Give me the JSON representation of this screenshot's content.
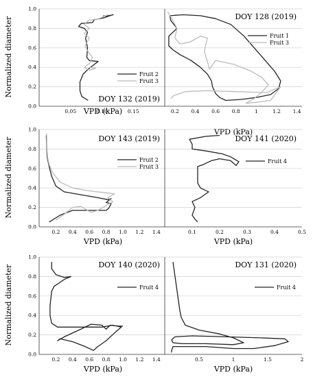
{
  "figure": {
    "ylabel": "Normalized diameter",
    "xlabel": "VPD (kPa)"
  },
  "chart_data": [
    {
      "type": "line",
      "title": "DOY 132 (2019)",
      "xlim": [
        0,
        0.2
      ],
      "ylim": [
        0,
        1
      ],
      "xticks": [
        0.05,
        0.1,
        0.15
      ],
      "xtick_labels": [
        "0.05",
        "0.10",
        "0.15"
      ],
      "yticks": [
        0,
        0.2,
        0.4,
        0.6,
        0.8,
        1.0
      ],
      "ytick_labels": [
        "0.0",
        "0.2",
        "0.4",
        "0.6",
        "0.8",
        "1.0"
      ],
      "legend": "bottom-right",
      "series": [
        {
          "name": "Fruit 2",
          "color": "#222222",
          "points": [
            [
              0.078,
              0.06
            ],
            [
              0.068,
              0.1
            ],
            [
              0.065,
              0.16
            ],
            [
              0.065,
              0.25
            ],
            [
              0.07,
              0.33
            ],
            [
              0.078,
              0.38
            ],
            [
              0.088,
              0.43
            ],
            [
              0.094,
              0.46
            ],
            [
              0.08,
              0.47
            ],
            [
              0.076,
              0.5
            ],
            [
              0.077,
              0.6
            ],
            [
              0.074,
              0.7
            ],
            [
              0.077,
              0.76
            ],
            [
              0.072,
              0.8
            ],
            [
              0.063,
              0.82
            ],
            [
              0.067,
              0.85
            ],
            [
              0.085,
              0.86
            ],
            [
              0.088,
              0.89
            ],
            [
              0.104,
              0.91
            ],
            [
              0.115,
              0.935
            ],
            [
              0.118,
              0.94
            ],
            [
              0.106,
              0.925
            ],
            [
              0.102,
              0.93
            ]
          ]
        },
        {
          "name": "Fruit 3",
          "color": "#bbbbbb",
          "points": [
            [
              0.11,
              0.94
            ],
            [
              0.095,
              0.9
            ],
            [
              0.078,
              0.88
            ],
            [
              0.072,
              0.84
            ],
            [
              0.08,
              0.8
            ],
            [
              0.072,
              0.75
            ],
            [
              0.08,
              0.7
            ],
            [
              0.073,
              0.62
            ],
            [
              0.078,
              0.56
            ],
            [
              0.085,
              0.5
            ],
            [
              0.08,
              0.44
            ],
            [
              0.072,
              0.4
            ],
            [
              0.08,
              0.37
            ],
            [
              0.09,
              0.39
            ],
            [
              0.08,
              0.4
            ]
          ]
        }
      ]
    },
    {
      "type": "line",
      "title": "DOY 128 (2019)",
      "xlim": [
        0.1,
        1.45
      ],
      "ylim": [
        0,
        1
      ],
      "xticks": [
        0.2,
        0.4,
        0.6,
        0.8,
        1.0,
        1.2,
        1.4
      ],
      "xtick_labels": [
        "0.2",
        "0.4",
        "0.6",
        "0.8",
        "1",
        "1.2",
        "1.4"
      ],
      "yticks": [
        0,
        0.2,
        0.4,
        0.6,
        0.8,
        1.0
      ],
      "legend": "top-right",
      "series": [
        {
          "name": "Fruit 1",
          "color": "#222222",
          "points": [
            [
              0.15,
              0.93
            ],
            [
              0.28,
              0.94
            ],
            [
              0.45,
              0.93
            ],
            [
              0.6,
              0.9
            ],
            [
              0.75,
              0.84
            ],
            [
              0.88,
              0.72
            ],
            [
              0.98,
              0.6
            ],
            [
              1.08,
              0.48
            ],
            [
              1.18,
              0.36
            ],
            [
              1.24,
              0.26
            ],
            [
              1.22,
              0.18
            ],
            [
              1.14,
              0.12
            ],
            [
              1.0,
              0.09
            ],
            [
              0.85,
              0.07
            ],
            [
              0.7,
              0.06
            ],
            [
              0.64,
              0.09
            ],
            [
              0.6,
              0.13
            ],
            [
              0.57,
              0.2
            ],
            [
              0.56,
              0.26
            ],
            [
              0.52,
              0.33
            ],
            [
              0.45,
              0.4
            ],
            [
              0.36,
              0.47
            ],
            [
              0.25,
              0.53
            ],
            [
              0.18,
              0.58
            ],
            [
              0.14,
              0.62
            ],
            [
              0.14,
              0.72
            ],
            [
              0.22,
              0.8
            ],
            [
              0.16,
              0.88
            ],
            [
              0.15,
              0.93
            ]
          ]
        },
        {
          "name": "Fruit 3",
          "color": "#bbbbbb",
          "points": [
            [
              0.13,
              0.97
            ],
            [
              0.18,
              0.88
            ],
            [
              0.22,
              0.8
            ],
            [
              0.2,
              0.7
            ],
            [
              0.25,
              0.64
            ],
            [
              0.35,
              0.66
            ],
            [
              0.45,
              0.72
            ],
            [
              0.52,
              0.7
            ],
            [
              0.5,
              0.62
            ],
            [
              0.49,
              0.56
            ],
            [
              0.52,
              0.46
            ],
            [
              0.54,
              0.38
            ],
            [
              0.6,
              0.47
            ],
            [
              0.78,
              0.43
            ],
            [
              0.95,
              0.36
            ],
            [
              1.05,
              0.3
            ],
            [
              1.12,
              0.22
            ],
            [
              1.05,
              0.14
            ],
            [
              0.98,
              0.08
            ],
            [
              0.9,
              0.03
            ],
            [
              1.0,
              0.04
            ],
            [
              1.14,
              0.06
            ],
            [
              1.24,
              0.2
            ],
            [
              1.1,
              0.14
            ],
            [
              0.8,
              0.15
            ],
            [
              0.52,
              0.16
            ],
            [
              0.3,
              0.15
            ],
            [
              0.19,
              0.11
            ],
            [
              0.16,
              0.08
            ]
          ]
        }
      ]
    },
    {
      "type": "line",
      "title": "DOY 143 (2019)",
      "xlim": [
        0,
        1.5
      ],
      "ylim": [
        0,
        1
      ],
      "xticks": [
        0.2,
        0.4,
        0.6,
        0.8,
        1.0,
        1.2,
        1.4
      ],
      "xtick_labels": [
        "0.2",
        "0.4",
        "0.6",
        "0.8",
        "1.0",
        "1.2",
        "1.4"
      ],
      "yticks": [
        0,
        0.2,
        0.4,
        0.6,
        0.8,
        1.0
      ],
      "ytick_labels": [
        "0.0",
        "0.2",
        "0.4",
        "0.6",
        "0.8",
        "1.0"
      ],
      "legend": "top-right",
      "series": [
        {
          "name": "Fruit 2",
          "color": "#222222",
          "points": [
            [
              0.085,
              0.94
            ],
            [
              0.09,
              0.84
            ],
            [
              0.095,
              0.72
            ],
            [
              0.12,
              0.62
            ],
            [
              0.15,
              0.52
            ],
            [
              0.2,
              0.42
            ],
            [
              0.3,
              0.36
            ],
            [
              0.5,
              0.33
            ],
            [
              0.7,
              0.3
            ],
            [
              0.82,
              0.28
            ],
            [
              0.86,
              0.29
            ],
            [
              0.8,
              0.25
            ],
            [
              0.86,
              0.24
            ],
            [
              0.83,
              0.19
            ],
            [
              0.8,
              0.17
            ],
            [
              0.6,
              0.17
            ],
            [
              0.4,
              0.17
            ],
            [
              0.25,
              0.12
            ],
            [
              0.12,
              0.05
            ]
          ]
        },
        {
          "name": "Fruit 3",
          "color": "#bbbbbb",
          "points": [
            [
              0.09,
              0.96
            ],
            [
              0.092,
              0.85
            ],
            [
              0.1,
              0.72
            ],
            [
              0.12,
              0.64
            ],
            [
              0.16,
              0.56
            ],
            [
              0.25,
              0.46
            ],
            [
              0.4,
              0.4
            ],
            [
              0.6,
              0.37
            ],
            [
              0.8,
              0.35
            ],
            [
              0.9,
              0.34
            ],
            [
              0.82,
              0.3
            ],
            [
              0.88,
              0.26
            ],
            [
              0.8,
              0.22
            ],
            [
              0.7,
              0.17
            ],
            [
              0.62,
              0.15
            ],
            [
              0.5,
              0.21
            ],
            [
              0.4,
              0.2
            ],
            [
              0.3,
              0.13
            ],
            [
              0.2,
              0.07
            ]
          ]
        }
      ]
    },
    {
      "type": "line",
      "title": "DOY 141 (2020)",
      "xlim": [
        0,
        0.5
      ],
      "ylim": [
        0,
        1
      ],
      "xticks": [
        0.1,
        0.2,
        0.3,
        0.4,
        0.5
      ],
      "xtick_labels": [
        "0.1",
        "0.2",
        "0.3",
        "0.4",
        "0.5"
      ],
      "yticks": [
        0,
        0.2,
        0.4,
        0.6,
        0.8,
        1.0
      ],
      "legend": "top-right",
      "series": [
        {
          "name": "Fruit 4",
          "color": "#222222",
          "points": [
            [
              0.2,
              0.94
            ],
            [
              0.15,
              0.93
            ],
            [
              0.09,
              0.9
            ],
            [
              0.1,
              0.85
            ],
            [
              0.1,
              0.8
            ],
            [
              0.15,
              0.78
            ],
            [
              0.21,
              0.75
            ],
            [
              0.24,
              0.72
            ],
            [
              0.27,
              0.67
            ],
            [
              0.26,
              0.63
            ],
            [
              0.24,
              0.68
            ],
            [
              0.2,
              0.7
            ],
            [
              0.17,
              0.68
            ],
            [
              0.14,
              0.64
            ],
            [
              0.12,
              0.62
            ],
            [
              0.12,
              0.55
            ],
            [
              0.12,
              0.45
            ],
            [
              0.13,
              0.4
            ],
            [
              0.16,
              0.36
            ],
            [
              0.13,
              0.3
            ],
            [
              0.1,
              0.26
            ],
            [
              0.11,
              0.2
            ],
            [
              0.1,
              0.12
            ],
            [
              0.11,
              0.08
            ],
            [
              0.12,
              0.05
            ]
          ]
        }
      ]
    },
    {
      "type": "line",
      "title": "DOY 140 (2020)",
      "xlim": [
        0,
        1.5
      ],
      "ylim": [
        0,
        1
      ],
      "xticks": [
        0.2,
        0.4,
        0.6,
        0.8,
        1.0,
        1.2,
        1.4
      ],
      "xtick_labels": [
        "0.2",
        "0.4",
        "0.6",
        "0.8",
        "1.0",
        "1.2",
        "1.4"
      ],
      "yticks": [
        0,
        0.2,
        0.4,
        0.6,
        0.8,
        1.0
      ],
      "ytick_labels": [
        "0.0",
        "0.2",
        "0.4",
        "0.6",
        "0.8",
        "1.0"
      ],
      "legend": "top-right",
      "series": [
        {
          "name": "Fruit 4",
          "color": "#222222",
          "points": [
            [
              0.15,
              0.95
            ],
            [
              0.15,
              0.88
            ],
            [
              0.2,
              0.82
            ],
            [
              0.3,
              0.79
            ],
            [
              0.38,
              0.8
            ],
            [
              0.3,
              0.77
            ],
            [
              0.25,
              0.74
            ],
            [
              0.18,
              0.7
            ],
            [
              0.15,
              0.65
            ],
            [
              0.13,
              0.5
            ],
            [
              0.13,
              0.4
            ],
            [
              0.15,
              0.32
            ],
            [
              0.22,
              0.28
            ],
            [
              0.5,
              0.28
            ],
            [
              0.75,
              0.28
            ],
            [
              0.88,
              0.3
            ],
            [
              0.98,
              0.28
            ],
            [
              0.9,
              0.22
            ],
            [
              0.8,
              0.14
            ],
            [
              0.7,
              0.08
            ],
            [
              0.65,
              0.04
            ],
            [
              0.55,
              0.08
            ],
            [
              0.4,
              0.13
            ],
            [
              0.25,
              0.16
            ],
            [
              0.22,
              0.14
            ],
            [
              0.3,
              0.18
            ],
            [
              0.5,
              0.26
            ],
            [
              0.62,
              0.31
            ],
            [
              0.75,
              0.3
            ],
            [
              0.8,
              0.26
            ],
            [
              0.85,
              0.3
            ],
            [
              0.95,
              0.29
            ],
            [
              1.0,
              0.29
            ]
          ]
        }
      ]
    },
    {
      "type": "line",
      "title": "DOY 131 (2020)",
      "xlim": [
        0,
        2.0
      ],
      "ylim": [
        0,
        1
      ],
      "xticks": [
        0.5,
        1.0,
        1.5,
        2.0
      ],
      "xtick_labels": [
        "0.5",
        "1",
        "1.5",
        "2"
      ],
      "yticks": [
        0,
        0.2,
        0.4,
        0.6,
        0.8,
        1.0
      ],
      "legend": "top-right",
      "series": [
        {
          "name": "Fruit 4",
          "color": "#222222",
          "points": [
            [
              0.12,
              0.95
            ],
            [
              0.14,
              0.85
            ],
            [
              0.16,
              0.75
            ],
            [
              0.18,
              0.65
            ],
            [
              0.2,
              0.55
            ],
            [
              0.22,
              0.45
            ],
            [
              0.24,
              0.38
            ],
            [
              0.3,
              0.3
            ],
            [
              0.5,
              0.25
            ],
            [
              0.8,
              0.21
            ],
            [
              1.0,
              0.17
            ],
            [
              1.15,
              0.12
            ],
            [
              1.0,
              0.1
            ],
            [
              0.6,
              0.11
            ],
            [
              0.25,
              0.11
            ],
            [
              0.12,
              0.12
            ],
            [
              0.1,
              0.15
            ],
            [
              0.15,
              0.18
            ],
            [
              0.4,
              0.19
            ],
            [
              0.9,
              0.18
            ],
            [
              1.4,
              0.17
            ],
            [
              1.75,
              0.16
            ],
            [
              1.8,
              0.13
            ],
            [
              1.6,
              0.09
            ],
            [
              1.3,
              0.06
            ],
            [
              1.0,
              0.06
            ],
            [
              0.6,
              0.08
            ],
            [
              0.25,
              0.08
            ],
            [
              0.12,
              0.08
            ],
            [
              0.1,
              0.04
            ],
            [
              0.1,
              0.02
            ]
          ]
        }
      ]
    }
  ]
}
